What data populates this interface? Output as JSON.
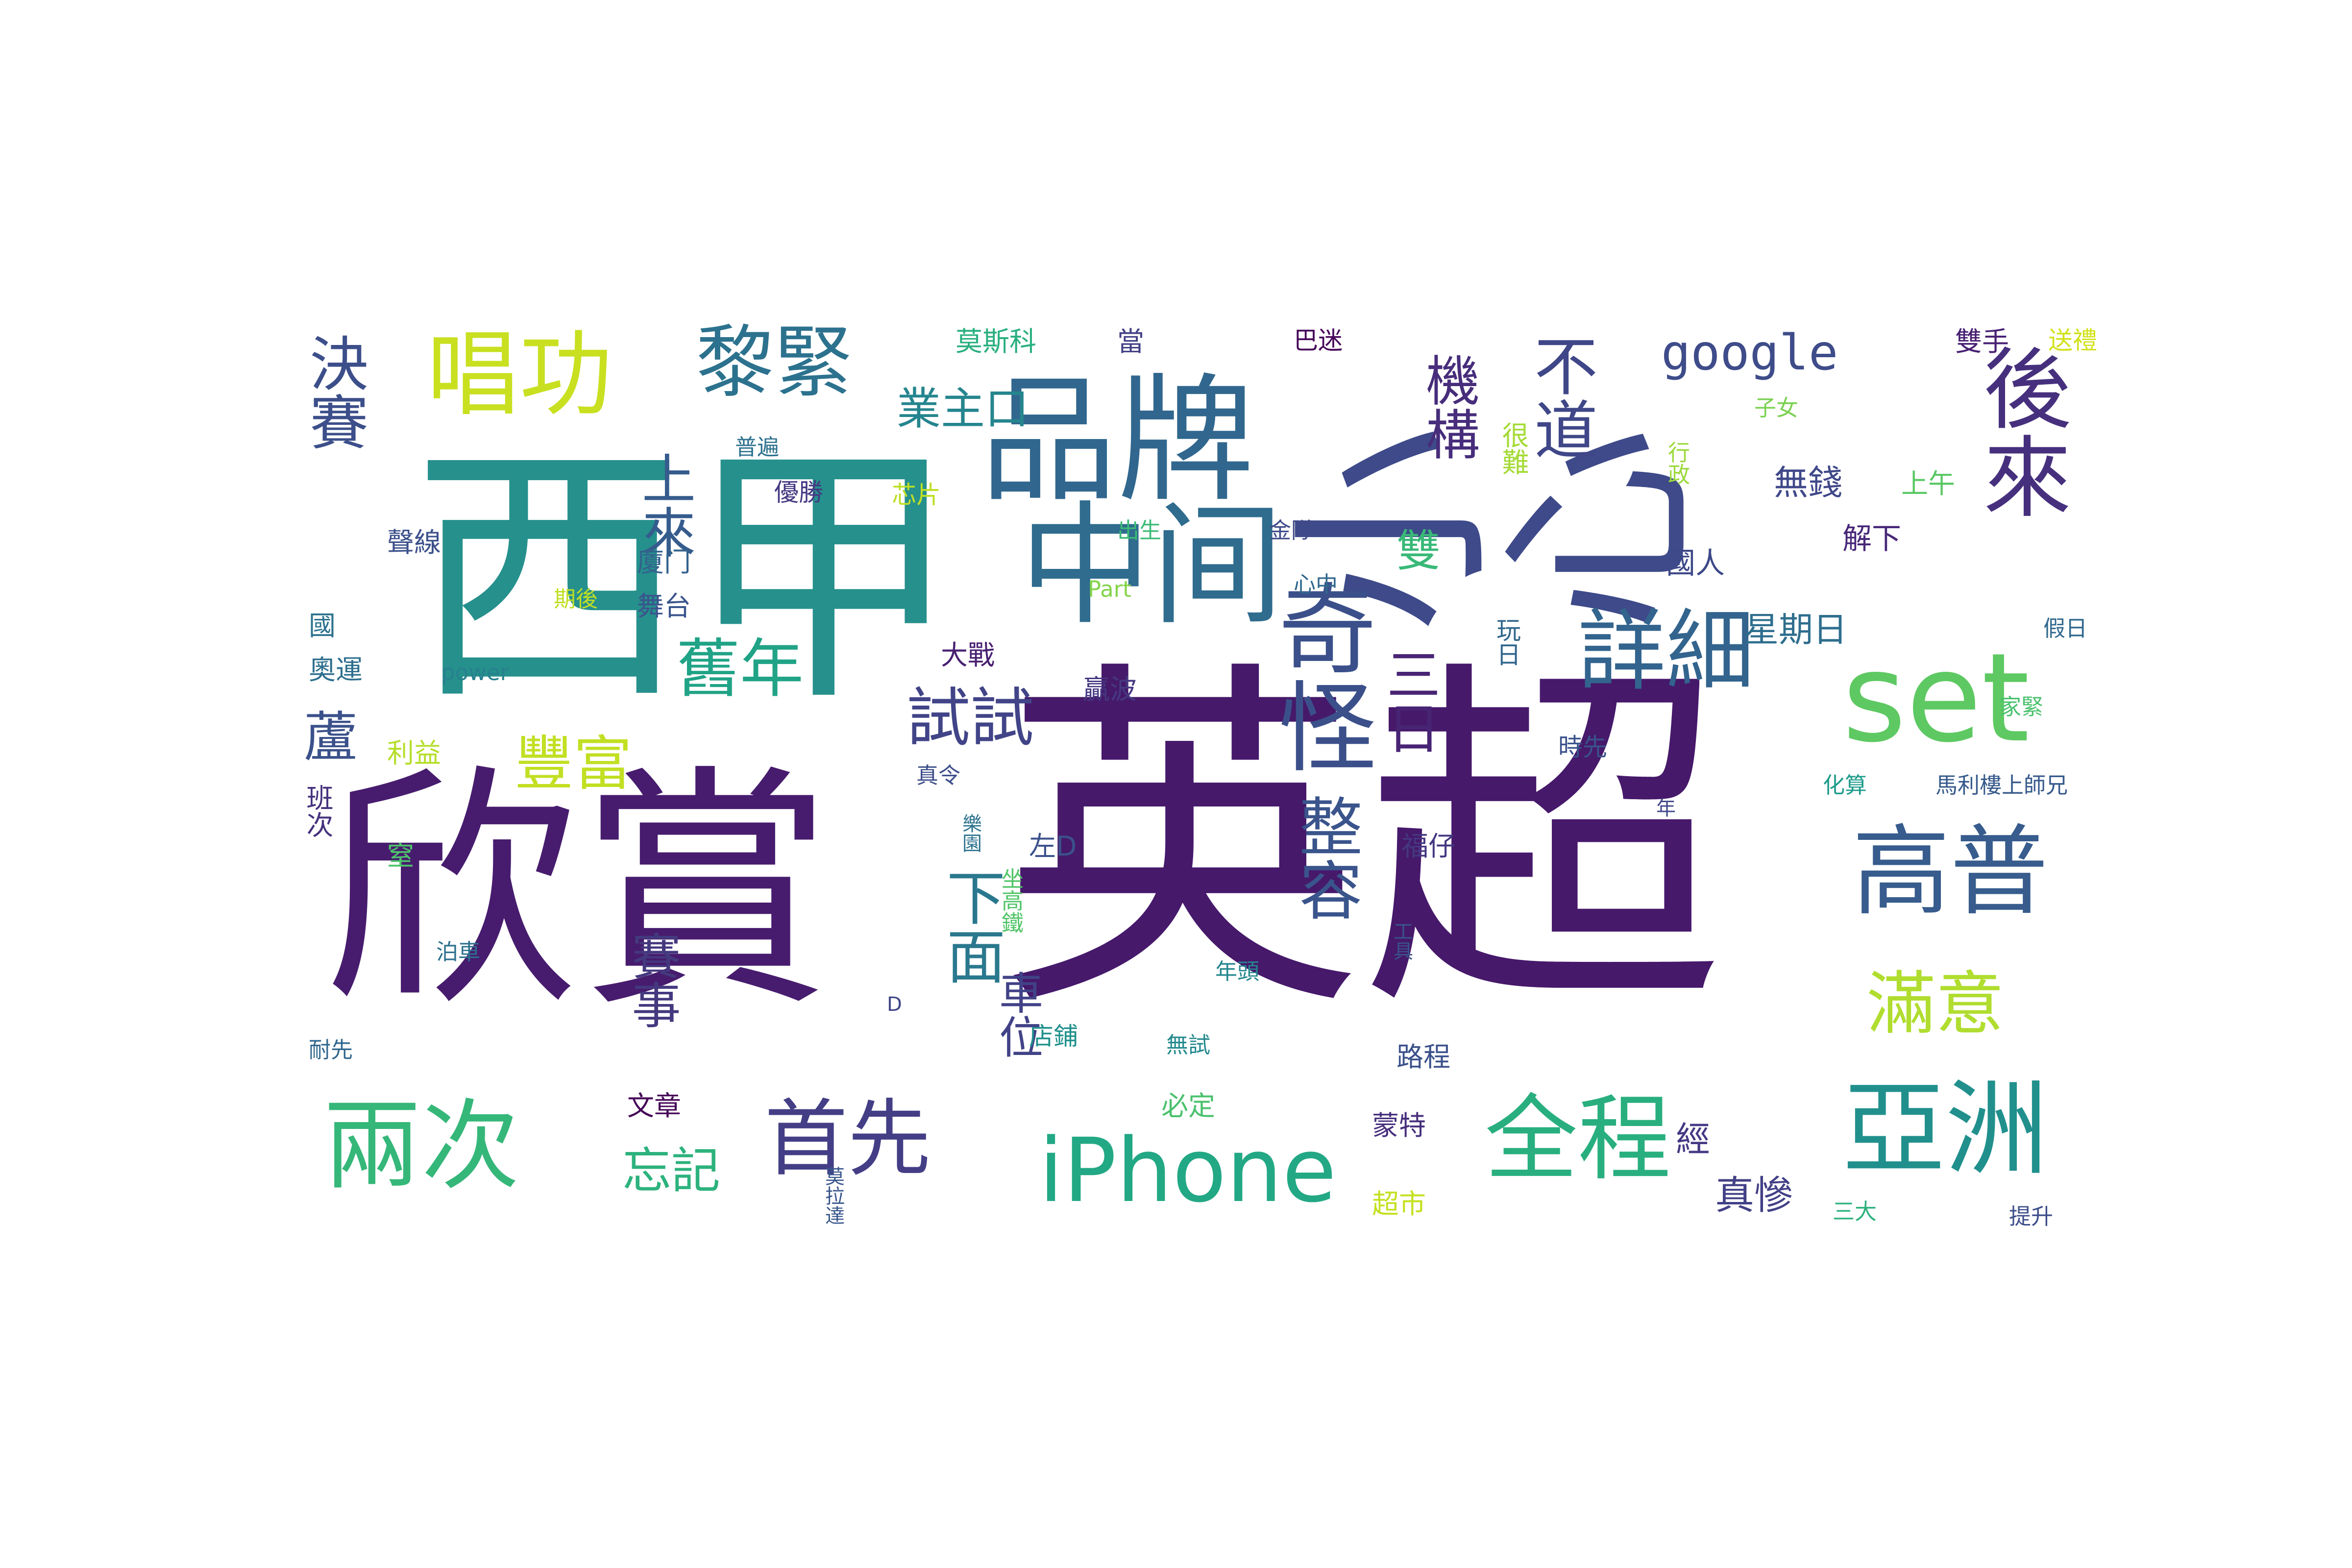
{
  "words": [
    {
      "text": "英超",
      "color": "#46196b"
    },
    {
      "text": "欣賞",
      "color": "#471c6e"
    },
    {
      "text": "西甲",
      "color": "#26908c"
    },
    {
      "text": "小心",
      "color": "#3e4a89"
    },
    {
      "text": "品牌",
      "color": "#31678e"
    },
    {
      "text": "中间",
      "color": "#2f6c8e"
    },
    {
      "text": "奇怪",
      "color": "#3b508a"
    },
    {
      "text": "set",
      "color": "#5ec962"
    },
    {
      "text": "高普",
      "color": "#375c8d"
    },
    {
      "text": "亞洲",
      "color": "#21908d"
    },
    {
      "text": "全程",
      "color": "#29af7f"
    },
    {
      "text": "iPhone",
      "color": "#22a884"
    },
    {
      "text": "兩次",
      "color": "#35b779"
    },
    {
      "text": "首先",
      "color": "#433e85"
    },
    {
      "text": "唱功",
      "color": "#c8e020"
    },
    {
      "text": "黎緊",
      "color": "#2c728e"
    },
    {
      "text": "後來",
      "color": "#46307e"
    },
    {
      "text": "詳細",
      "color": "#32648e"
    },
    {
      "text": "整容",
      "color": "#3a548c"
    },
    {
      "text": "滿意",
      "color": "#b0dd2f"
    },
    {
      "text": "舊年",
      "color": "#20a386"
    },
    {
      "text": "豐富",
      "color": "#c2df23"
    },
    {
      "text": "試試",
      "color": "#414487"
    },
    {
      "text": "google",
      "color": "#3e4c8a"
    },
    {
      "text": "不道",
      "color": "#3f4788"
    },
    {
      "text": "決賽",
      "color": "#3c4f8a"
    },
    {
      "text": "機構",
      "color": "#472d7b"
    },
    {
      "text": "上來",
      "color": "#365c8d"
    },
    {
      "text": "三日",
      "color": "#482475"
    },
    {
      "text": "下面",
      "color": "#2a788e"
    },
    {
      "text": "車位",
      "color": "#414287"
    },
    {
      "text": "蘆",
      "color": "#3b518b"
    },
    {
      "text": "賽事",
      "color": "#44397f"
    },
    {
      "text": "忘記",
      "color": "#2db27d"
    },
    {
      "text": "雙",
      "color": "#38b977"
    },
    {
      "text": "真慘",
      "color": "#424086"
    },
    {
      "text": "國人",
      "color": "#3e4989"
    },
    {
      "text": "星期日",
      "color": "#2e6e8e"
    },
    {
      "text": "無錢",
      "color": "#3f4889"
    },
    {
      "text": "解下",
      "color": "#482878"
    },
    {
      "text": "上午",
      "color": "#5ac864"
    },
    {
      "text": "子女",
      "color": "#7ad151"
    },
    {
      "text": "行政",
      "color": "#9bd93c"
    },
    {
      "text": "很難",
      "color": "#a5db36"
    },
    {
      "text": "玩日",
      "color": "#31678e"
    },
    {
      "text": "時先",
      "color": "#3b528b"
    },
    {
      "text": "家緊",
      "color": "#4ac16d"
    },
    {
      "text": "假日",
      "color": "#31688e"
    },
    {
      "text": "化算",
      "color": "#1e9b8a"
    },
    {
      "text": "馬利樓上師兄",
      "color": "#375a8c"
    },
    {
      "text": "年",
      "color": "#3f4788"
    },
    {
      "text": "福仔",
      "color": "#453781"
    },
    {
      "text": "工具",
      "color": "#3a538b"
    },
    {
      "text": "年頭",
      "color": "#24868e"
    },
    {
      "text": "無試",
      "color": "#23898e"
    },
    {
      "text": "路程",
      "color": "#3b518b"
    },
    {
      "text": "必定",
      "color": "#4ac16d"
    },
    {
      "text": "蒙特",
      "color": "#472f7d"
    },
    {
      "text": "超市",
      "color": "#c5e021"
    },
    {
      "text": "經",
      "color": "#443983"
    },
    {
      "text": "三大",
      "color": "#2db27d"
    },
    {
      "text": "提升",
      "color": "#3d4d8a"
    },
    {
      "text": "雙手",
      "color": "#482173"
    },
    {
      "text": "送禮",
      "color": "#d2e21b"
    },
    {
      "text": "莫斯科",
      "color": "#29af7f"
    },
    {
      "text": "當",
      "color": "#424186"
    },
    {
      "text": "巴迷",
      "color": "#450559"
    },
    {
      "text": "業主口",
      "color": "#25858e"
    },
    {
      "text": "普遍",
      "color": "#2d718e"
    },
    {
      "text": "優勝",
      "color": "#453882"
    },
    {
      "text": "芯片",
      "color": "#bddf26"
    },
    {
      "text": "出生",
      "color": "#3bbb75"
    },
    {
      "text": "金隊",
      "color": "#3e4a89"
    },
    {
      "text": "心中",
      "color": "#31688e"
    },
    {
      "text": "Part",
      "color": "#84d44b"
    },
    {
      "text": "大戰",
      "color": "#482071"
    },
    {
      "text": "贏波",
      "color": "#453882"
    },
    {
      "text": "真令",
      "color": "#3d4e8a"
    },
    {
      "text": "樂園",
      "color": "#2c738e"
    },
    {
      "text": "左D",
      "color": "#3b528b"
    },
    {
      "text": "坐高鐵",
      "color": "#52c569"
    },
    {
      "text": "D",
      "color": "#3f4788"
    },
    {
      "text": "店鋪",
      "color": "#21918c"
    },
    {
      "text": "廈门",
      "color": "#33628d"
    },
    {
      "text": "舞台",
      "color": "#3a548c"
    },
    {
      "text": "聲線",
      "color": "#3c508b"
    },
    {
      "text": "期後",
      "color": "#c0df25"
    },
    {
      "text": "國",
      "color": "#2c728e"
    },
    {
      "text": "奧運",
      "color": "#2e6f8e"
    },
    {
      "text": "power",
      "color": "#26818e"
    },
    {
      "text": "利益",
      "color": "#b5de2b"
    },
    {
      "text": "班次",
      "color": "#46327e"
    },
    {
      "text": "窒",
      "color": "#4ec36b"
    },
    {
      "text": "泊車",
      "color": "#2c718e"
    },
    {
      "text": "耐先",
      "color": "#31678e"
    },
    {
      "text": "文章",
      "color": "#440256"
    },
    {
      "text": "莫拉達",
      "color": "#39568c"
    },
    {
      "text": "·",
      "color": "#222222"
    }
  ]
}
